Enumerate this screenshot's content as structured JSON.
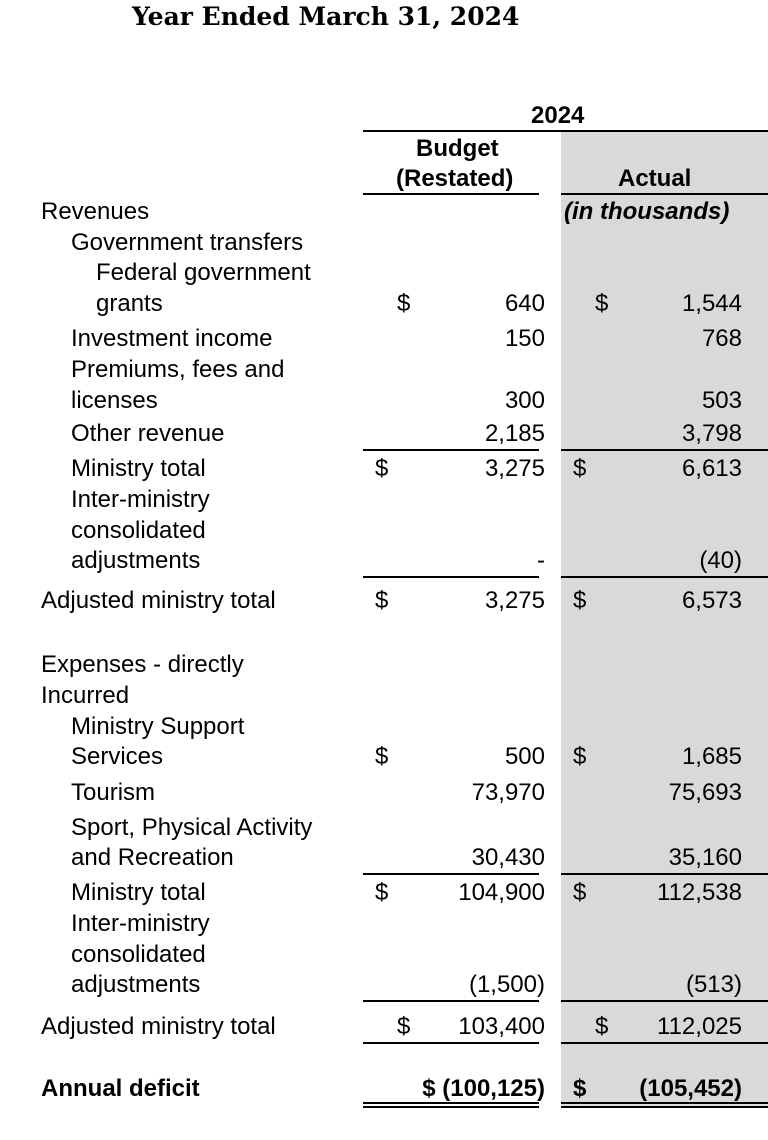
{
  "title": "Year Ended March 31, 2024",
  "header": {
    "year": "2024",
    "budget_line1": "Budget",
    "budget_line2": "(Restated)",
    "actual": "Actual",
    "units": "(in thousands)"
  },
  "revenues": {
    "heading": "Revenues",
    "gov_transfers": "Government transfers",
    "fed_line1": "Federal government",
    "fed_line2": "grants",
    "fed_budget": "640",
    "fed_actual": "1,544",
    "inv_label": "Investment income",
    "inv_budget": "150",
    "inv_actual": "768",
    "prem_line1": "Premiums, fees and",
    "prem_line2": "licenses",
    "prem_budget": "300",
    "prem_actual": "503",
    "other_label": "Other revenue",
    "other_budget": "2,185",
    "other_actual": "3,798",
    "total_label": "Ministry total",
    "total_budget": "3,275",
    "total_actual": "6,613",
    "inter_line1": "Inter-ministry",
    "inter_line2": "consolidated",
    "inter_line3": "adjustments",
    "inter_budget": "-",
    "inter_actual": "(40)",
    "adj_label": "Adjusted ministry total",
    "adj_budget": "3,275",
    "adj_actual": "6,573"
  },
  "expenses": {
    "heading_line1": "Expenses - directly",
    "heading_line2": "Incurred",
    "mss_line1": "Ministry Support",
    "mss_line2": "Services",
    "mss_budget": "500",
    "mss_actual": "1,685",
    "tourism_label": "Tourism",
    "tourism_budget": "73,970",
    "tourism_actual": "75,693",
    "sport_line1": "Sport, Physical Activity",
    "sport_line2": "and Recreation",
    "sport_budget": "30,430",
    "sport_actual": "35,160",
    "total_label": "Ministry total",
    "total_budget": "104,900",
    "total_actual": "112,538",
    "inter_line1": "Inter-ministry",
    "inter_line2": "consolidated",
    "inter_line3": "adjustments",
    "inter_budget": "(1,500)",
    "inter_actual": "(513)",
    "adj_label": "Adjusted ministry total",
    "adj_budget": "103,400",
    "adj_actual": "112,025"
  },
  "deficit": {
    "label": "Annual deficit",
    "budget": "$ (100,125)",
    "actual": "(105,452)"
  },
  "currency": "$"
}
